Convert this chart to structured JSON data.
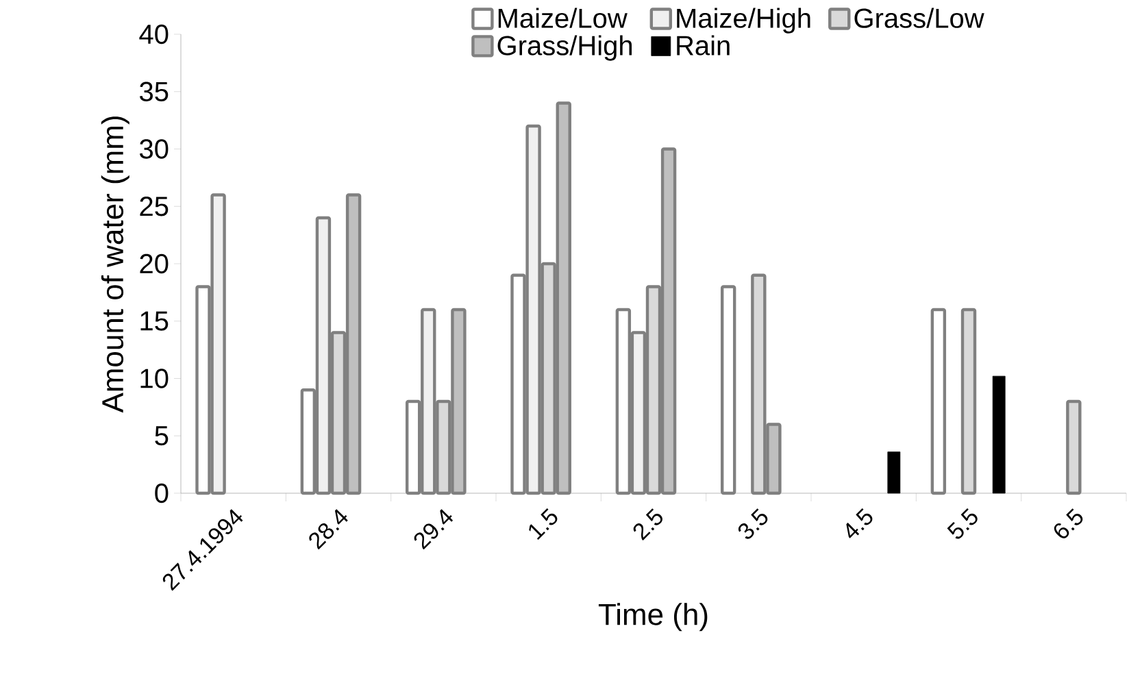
{
  "chart_data": {
    "type": "bar",
    "xlabel": "Time (h)",
    "ylabel": "Amount of water (mm)",
    "categories": [
      "27.4.1994",
      "28.4",
      "29.4",
      "1.5",
      "2.5",
      "3.5",
      "4.5",
      "5.5",
      "6.5"
    ],
    "series": [
      {
        "name": "Maize/Low",
        "color": "#808080",
        "values": [
          18,
          9,
          8,
          19,
          16,
          18,
          null,
          16,
          null
        ]
      },
      {
        "name": "Maize/High",
        "color": "#808080",
        "values": [
          26,
          24,
          16,
          32,
          14,
          null,
          null,
          null,
          null
        ]
      },
      {
        "name": "Grass/Low",
        "color": "#808080",
        "values": [
          null,
          14,
          8,
          20,
          18,
          19,
          null,
          16,
          8
        ]
      },
      {
        "name": "Grass/High",
        "color": "#808080",
        "values": [
          null,
          26,
          16,
          34,
          30,
          6,
          null,
          null,
          null
        ]
      },
      {
        "name": "Rain",
        "color": "#000000",
        "values": [
          null,
          null,
          null,
          null,
          null,
          null,
          3.6,
          10.2,
          null
        ]
      }
    ],
    "ylim": [
      0,
      40
    ],
    "yticks": [
      0,
      5,
      10,
      15,
      20,
      25,
      30,
      35,
      40
    ],
    "grid": false,
    "legend": "top"
  }
}
